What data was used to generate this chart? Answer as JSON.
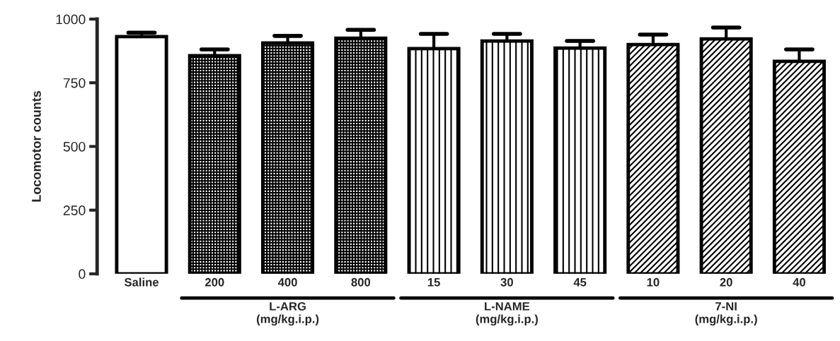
{
  "chart_data": {
    "type": "bar",
    "ylabel": "Locomotor counts",
    "categories": [
      "Saline",
      "200",
      "400",
      "800",
      "15",
      "30",
      "45",
      "10",
      "20",
      "40"
    ],
    "series": [
      {
        "color": "#ffffff",
        "values": [
          931,
          null,
          null,
          null,
          null,
          null,
          null,
          null,
          null,
          null
        ],
        "errors": [
          [
            931,
            947
          ],
          null,
          null,
          null,
          null,
          null,
          null,
          null,
          null,
          null
        ]
      },
      {
        "color": "#000000",
        "values": [
          null,
          856,
          906,
          925,
          null,
          null,
          null,
          null,
          null,
          null
        ],
        "errors": [
          null,
          [
            856,
            881
          ],
          [
            906,
            934
          ],
          [
            925,
            958
          ],
          null,
          null,
          null,
          null,
          null,
          null
        ]
      },
      {
        "color": "#000000",
        "values": [
          null,
          null,
          null,
          null,
          884,
          914,
          886,
          null,
          null,
          null
        ],
        "errors": [
          null,
          null,
          null,
          null,
          [
            884,
            942
          ],
          [
            914,
            942
          ],
          [
            886,
            914
          ],
          null,
          null,
          null
        ]
      },
      {
        "color": "#000000",
        "values": [
          null,
          null,
          null,
          null,
          null,
          null,
          null,
          900,
          922,
          834
        ],
        "errors": [
          null,
          null,
          null,
          null,
          null,
          null,
          null,
          [
            900,
            939
          ],
          [
            922,
            967
          ],
          [
            834,
            881
          ]
        ]
      }
    ],
    "ylim": [
      0,
      1000
    ],
    "yticks": [
      0,
      250,
      500,
      750,
      1000
    ],
    "grid": false,
    "legend": false,
    "annotations": [
      "L-ARG\n(mg/kg.i.p.)",
      "L-NAME\n(mg/kg.i.p.)",
      "7-NI\n(mg/kg.i.p.)"
    ]
  }
}
